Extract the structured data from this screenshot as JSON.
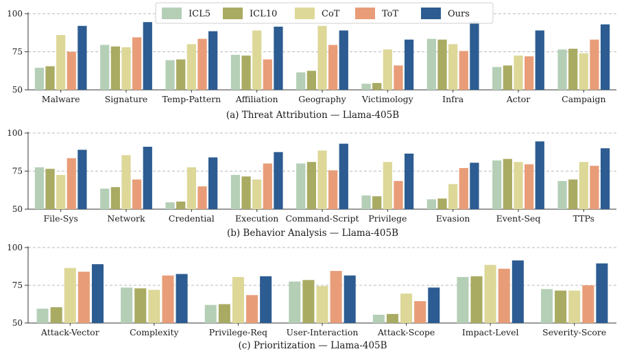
{
  "legend": {
    "items": [
      {
        "name": "ICL5",
        "color": "#b5cfb7"
      },
      {
        "name": "ICL10",
        "color": "#a9ab62"
      },
      {
        "name": "CoT",
        "color": "#ddd898"
      },
      {
        "name": "ToT",
        "color": "#e89d78"
      },
      {
        "name": "Ours",
        "color": "#2c5c91"
      }
    ]
  },
  "chart_data": [
    {
      "type": "bar",
      "title": "(a) Threat Attribution — Llama-405B",
      "ylim": [
        50,
        100
      ],
      "yticks": [
        "50",
        "75",
        "100"
      ],
      "grid": true,
      "categories": [
        "Malware",
        "Signature",
        "Temp-Pattern",
        "Affiliation",
        "Geography",
        "Victimology",
        "Infra",
        "Actor",
        "Campaign"
      ],
      "series": [
        {
          "name": "ICL5",
          "values": [
            64.5,
            79.5,
            69.5,
            73,
            61.5,
            54,
            83.5,
            65,
            76.5
          ]
        },
        {
          "name": "ICL10",
          "values": [
            65.5,
            78.5,
            70,
            72.5,
            62.5,
            54.5,
            83,
            66,
            77
          ]
        },
        {
          "name": "CoT",
          "values": [
            86,
            78,
            80,
            89,
            92,
            76.5,
            80,
            72.5,
            74
          ]
        },
        {
          "name": "ToT",
          "values": [
            75,
            84.5,
            83.5,
            70,
            79.5,
            66,
            75.5,
            72,
            83
          ]
        },
        {
          "name": "Ours",
          "values": [
            92,
            94.5,
            88.5,
            91.5,
            89,
            83,
            95,
            89,
            93
          ]
        }
      ]
    },
    {
      "type": "bar",
      "title": "(b) Behavior Analysis — Llama-405B",
      "ylim": [
        50,
        100
      ],
      "yticks": [
        "50",
        "75",
        "100"
      ],
      "grid": true,
      "categories": [
        "File-Sys",
        "Network",
        "Credential",
        "Execution",
        "Command-Script",
        "Privilege",
        "Evasion",
        "Event-Seq",
        "TTPs"
      ],
      "series": [
        {
          "name": "ICL5",
          "values": [
            77.5,
            63.5,
            54.5,
            72.5,
            80,
            59,
            56.5,
            82,
            68.5
          ]
        },
        {
          "name": "ICL10",
          "values": [
            76.5,
            64.5,
            55,
            71.5,
            81,
            58.5,
            57,
            83,
            69.5
          ]
        },
        {
          "name": "CoT",
          "values": [
            72.5,
            85.5,
            77.5,
            69.5,
            88.5,
            81,
            66.5,
            81,
            81
          ]
        },
        {
          "name": "ToT",
          "values": [
            83.5,
            69.5,
            65,
            80,
            75.5,
            68.5,
            77,
            79.5,
            78.5
          ]
        },
        {
          "name": "Ours",
          "values": [
            89,
            91,
            84,
            87.5,
            93,
            86.5,
            80.5,
            94.5,
            90
          ]
        }
      ]
    },
    {
      "type": "bar",
      "title": "(c) Prioritization — Llama-405B",
      "ylim": [
        50,
        100
      ],
      "yticks": [
        "50",
        "75",
        "100"
      ],
      "grid": true,
      "categories": [
        "Attack-Vector",
        "Complexity",
        "Privilege-Req",
        "User-Interaction",
        "Attack-Scope",
        "Impact-Level",
        "Severity-Score"
      ],
      "series": [
        {
          "name": "ICL5",
          "values": [
            59.5,
            73.5,
            62,
            77.5,
            55.5,
            80.5,
            72.5
          ]
        },
        {
          "name": "ICL10",
          "values": [
            60.5,
            73,
            62.5,
            78.5,
            56,
            81,
            71.5
          ]
        },
        {
          "name": "CoT",
          "values": [
            86.5,
            72,
            80.5,
            74.5,
            69.5,
            88.5,
            71.5
          ]
        },
        {
          "name": "ToT",
          "values": [
            84,
            81.5,
            68.5,
            84.5,
            64.5,
            86,
            75
          ]
        },
        {
          "name": "Ours",
          "values": [
            89,
            82.5,
            81,
            81.5,
            73.5,
            91.5,
            89.5
          ]
        }
      ]
    }
  ]
}
